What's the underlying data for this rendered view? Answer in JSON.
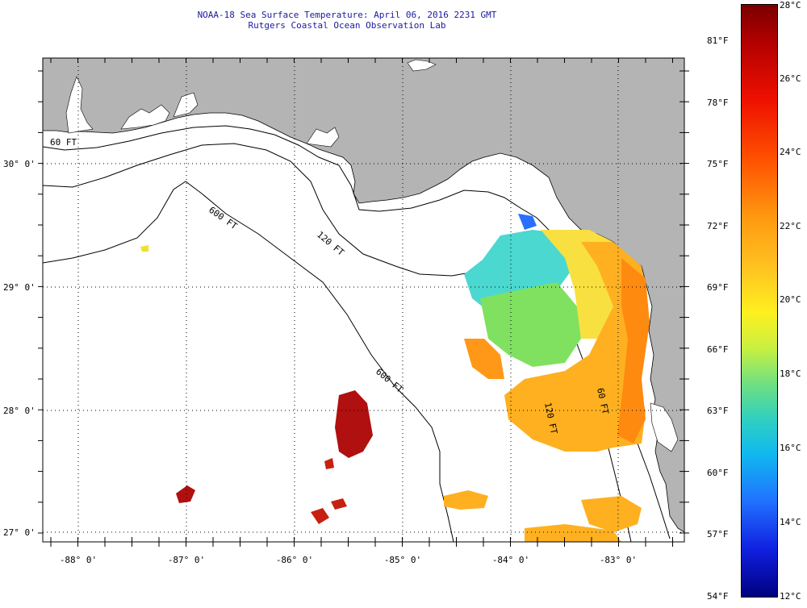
{
  "title": {
    "line1": "NOAA-18 Sea Surface Temperature:  April 06, 2016 2231 GMT",
    "line2": "Rutgers Coastal Ocean Observation Lab"
  },
  "axes": {
    "lat_labels": [
      "30° 0'",
      "29° 0'",
      "28° 0'",
      "27° 0'"
    ],
    "lon_labels": [
      "-88° 0'",
      "-87° 0'",
      "-86° 0'",
      "-85° 0'",
      "-84° 0'",
      "-83° 0'"
    ]
  },
  "contours": {
    "c60": "60 FT",
    "c120": "120 FT",
    "c600": "600 FT",
    "c600b": "600 FT",
    "c60b": "60 FT",
    "c120b": "120 FT"
  },
  "colorbar": {
    "celsius": [
      "28°C",
      "26°C",
      "24°C",
      "22°C",
      "20°C",
      "18°C",
      "16°C",
      "14°C",
      "12°C"
    ],
    "fahrenheit": [
      "81°F",
      "78°F",
      "75°F",
      "72°F",
      "69°F",
      "66°F",
      "63°F",
      "60°F",
      "57°F",
      "54°F"
    ]
  },
  "colors": {
    "land": "#b4b4b4",
    "water": "#ffffff",
    "title_text": "#1a1aa0"
  }
}
